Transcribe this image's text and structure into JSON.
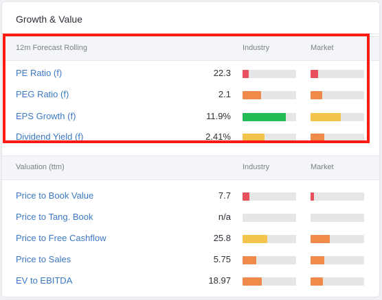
{
  "panel": {
    "title": "Growth & Value"
  },
  "colors": {
    "red": "#e8505b",
    "orange": "#f08a4b",
    "green": "#22bb55",
    "yellow": "#f2c44c",
    "empty": "#e6e6e6",
    "link": "#3b78c3"
  },
  "sections": [
    {
      "name": "forecast",
      "header": {
        "label": "12m Forecast Rolling",
        "col1": "Industry",
        "col2": "Market"
      },
      "rows": [
        {
          "label": "PE Ratio (f)",
          "value": "22.3",
          "industry": {
            "level": 0.11,
            "color": "red"
          },
          "market": {
            "level": 0.14,
            "color": "red"
          }
        },
        {
          "label": "PEG Ratio (f)",
          "value": "2.1",
          "industry": {
            "level": 0.34,
            "color": "orange"
          },
          "market": {
            "level": 0.22,
            "color": "orange"
          }
        },
        {
          "label": "EPS Growth (f)",
          "value": "11.9%",
          "industry": {
            "level": 0.81,
            "color": "green"
          },
          "market": {
            "level": 0.56,
            "color": "yellow"
          }
        },
        {
          "label": "Dividend Yield (f)",
          "value": "2.41%",
          "industry": {
            "level": 0.41,
            "color": "yellow"
          },
          "market": {
            "level": 0.26,
            "color": "orange"
          }
        }
      ]
    },
    {
      "name": "valuation",
      "header": {
        "label": "Valuation (ttm)",
        "col1": "Industry",
        "col2": "Market"
      },
      "rows": [
        {
          "label": "Price to Book Value",
          "value": "7.7",
          "industry": {
            "level": 0.13,
            "color": "red"
          },
          "market": {
            "level": 0.06,
            "color": "red"
          }
        },
        {
          "label": "Price to Tang. Book",
          "value": "n/a",
          "industry": {
            "level": 0.0,
            "color": "empty"
          },
          "market": {
            "level": 0.0,
            "color": "empty"
          }
        },
        {
          "label": "Price to Free Cashflow",
          "value": "25.8",
          "industry": {
            "level": 0.46,
            "color": "yellow"
          },
          "market": {
            "level": 0.36,
            "color": "orange"
          }
        },
        {
          "label": "Price to Sales",
          "value": "5.75",
          "industry": {
            "level": 0.26,
            "color": "orange"
          },
          "market": {
            "level": 0.26,
            "color": "orange"
          }
        },
        {
          "label": "EV to EBITDA",
          "value": "18.97",
          "industry": {
            "level": 0.36,
            "color": "orange"
          },
          "market": {
            "level": 0.23,
            "color": "orange"
          }
        }
      ]
    }
  ]
}
